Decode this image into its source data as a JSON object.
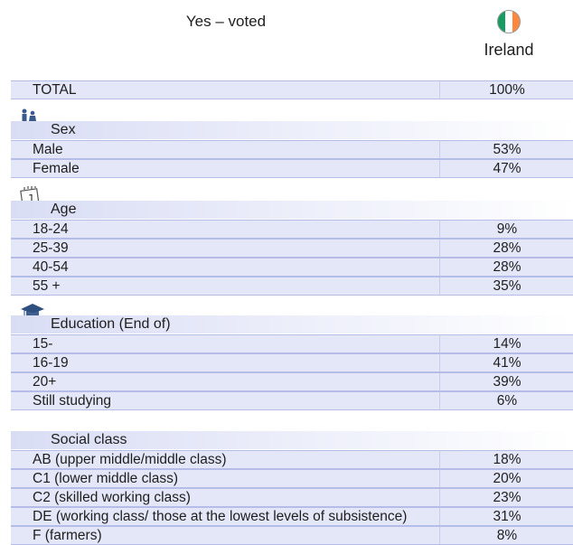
{
  "header": {
    "title": "Yes – voted",
    "column": "Ireland"
  },
  "total": {
    "label": "TOTAL",
    "value": "100%"
  },
  "sections": [
    {
      "title": "Sex",
      "rows": [
        {
          "label": "Male",
          "value": "53%"
        },
        {
          "label": "Female",
          "value": "47%"
        }
      ]
    },
    {
      "title": "Age",
      "rows": [
        {
          "label": "18-24",
          "value": "9%"
        },
        {
          "label": "25-39",
          "value": "28%"
        },
        {
          "label": "40-54",
          "value": "28%"
        },
        {
          "label": "55 +",
          "value": "35%"
        }
      ]
    },
    {
      "title": "Education (End of)",
      "rows": [
        {
          "label": "15-",
          "value": "14%"
        },
        {
          "label": "16-19",
          "value": "41%"
        },
        {
          "label": "20+",
          "value": "39%"
        },
        {
          "label": "Still studying",
          "value": "6%"
        }
      ]
    },
    {
      "title": "Social class",
      "rows": [
        {
          "label": "AB (upper middle/middle class)",
          "value": "18%"
        },
        {
          "label": "C1 (lower middle class)",
          "value": "20%"
        },
        {
          "label": "C2 (skilled working class)",
          "value": "23%"
        },
        {
          "label": "DE (working class/ those at the lowest levels of subsistence)",
          "value": "31%"
        },
        {
          "label": "F (farmers)",
          "value": "8%"
        }
      ]
    }
  ]
}
